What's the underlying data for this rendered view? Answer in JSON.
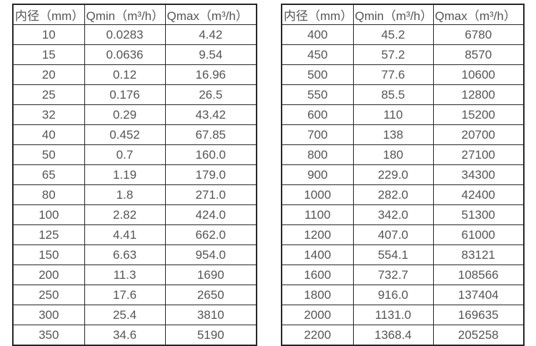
{
  "chart_data": [
    {
      "type": "table",
      "title": "",
      "columns": [
        "内径（mm）",
        "Qmin（m³/h）",
        "Qmax（m³/h）"
      ],
      "rows": [
        [
          "10",
          "0.0283",
          "4.42"
        ],
        [
          "15",
          "0.0636",
          "9.54"
        ],
        [
          "20",
          "0.12",
          "16.96"
        ],
        [
          "25",
          "0.176",
          "26.5"
        ],
        [
          "32",
          "0.29",
          "43.42"
        ],
        [
          "40",
          "0.452",
          "67.85"
        ],
        [
          "50",
          "0.7",
          "160.0"
        ],
        [
          "65",
          "1.19",
          "179.0"
        ],
        [
          "80",
          "1.8",
          "271.0"
        ],
        [
          "100",
          "2.82",
          "424.0"
        ],
        [
          "125",
          "4.41",
          "662.0"
        ],
        [
          "150",
          "6.63",
          "954.0"
        ],
        [
          "200",
          "11.3",
          "1690"
        ],
        [
          "250",
          "17.6",
          "2650"
        ],
        [
          "300",
          "25.4",
          "3810"
        ],
        [
          "350",
          "34.6",
          "5190"
        ]
      ]
    },
    {
      "type": "table",
      "title": "",
      "columns": [
        "内径（mm）",
        "Qmin（m³/h）",
        "Qmax（m³/h）"
      ],
      "rows": [
        [
          "400",
          "45.2",
          "6780"
        ],
        [
          "450",
          "57.2",
          "8570"
        ],
        [
          "500",
          "77.6",
          "10600"
        ],
        [
          "550",
          "85.5",
          "12800"
        ],
        [
          "600",
          "110",
          "15200"
        ],
        [
          "700",
          "138",
          "20700"
        ],
        [
          "800",
          "180",
          "27100"
        ],
        [
          "900",
          "229.0",
          "34300"
        ],
        [
          "1000",
          "282.0",
          "42400"
        ],
        [
          "1100",
          "342.0",
          "51300"
        ],
        [
          "1200",
          "407.0",
          "61000"
        ],
        [
          "1400",
          "554.1",
          "83121"
        ],
        [
          "1600",
          "732.7",
          "108566"
        ],
        [
          "1800",
          "916.0",
          "137404"
        ],
        [
          "2000",
          "1131.0",
          "169635"
        ],
        [
          "2200",
          "1368.4",
          "205258"
        ]
      ]
    }
  ],
  "colors": {
    "border": "#262626",
    "text": "#555555",
    "background": "#ffffff"
  }
}
